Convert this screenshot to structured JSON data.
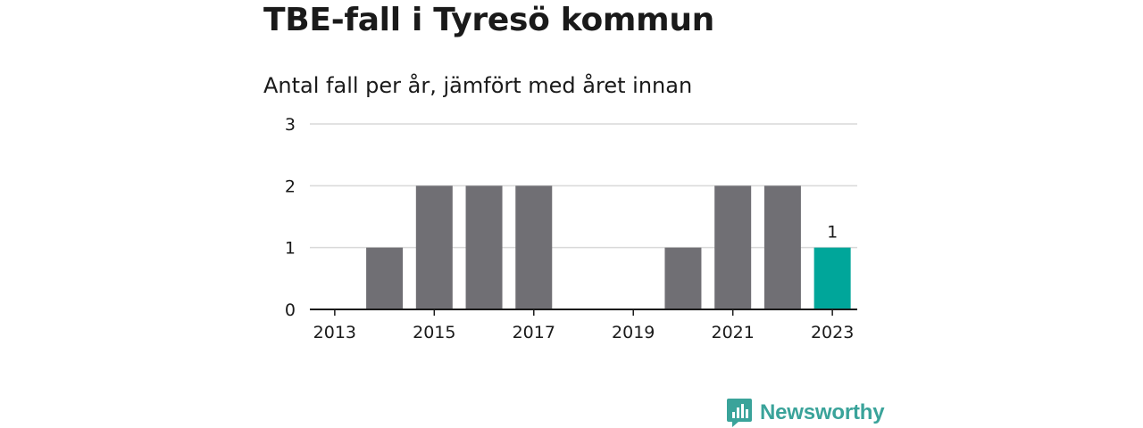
{
  "header": {
    "title": "TBE-fall i Tyresö kommun",
    "subtitle": "Antal fall per år, jämfört med året innan"
  },
  "brand": {
    "name": "Newsworthy",
    "icon": "newsworthy-logo-icon",
    "color": "#3aa39a"
  },
  "chart_data": {
    "type": "bar",
    "categories": [
      "2013",
      "2014",
      "2015",
      "2016",
      "2017",
      "2018",
      "2019",
      "2020",
      "2021",
      "2022",
      "2023"
    ],
    "values": [
      0,
      1,
      2,
      2,
      2,
      0,
      0,
      1,
      2,
      2,
      1
    ],
    "x_tick_labels": [
      "2013",
      "2015",
      "2017",
      "2019",
      "2021",
      "2023"
    ],
    "y_ticks": [
      0,
      1,
      2,
      3
    ],
    "ylim": [
      0,
      3
    ],
    "highlight": {
      "category": "2023",
      "label": "1"
    },
    "colors": {
      "bar": "#706f74",
      "highlight": "#00a69a",
      "grid": "#d9d9d9",
      "axis": "#1a1a1a"
    },
    "grid": true,
    "xlabel": "",
    "ylabel": ""
  }
}
